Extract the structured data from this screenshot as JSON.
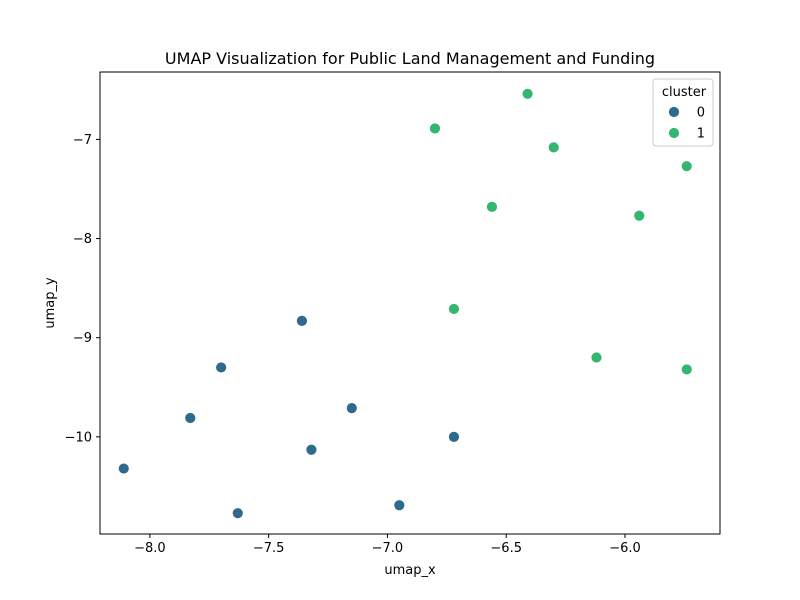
{
  "chart_data": {
    "type": "scatter",
    "title": "UMAP Visualization for Public Land Management and Funding",
    "xlabel": "umap_x",
    "ylabel": "umap_y",
    "xlim": [
      -8.21,
      -5.6
    ],
    "ylim": [
      -10.98,
      -6.32
    ],
    "xticks": [
      -8.0,
      -7.5,
      -7.0,
      -6.5,
      -6.0
    ],
    "xtick_labels": [
      "−8.0",
      "−7.5",
      "−7.0",
      "−6.5",
      "−6.0"
    ],
    "yticks": [
      -7,
      -8,
      -9,
      -10
    ],
    "ytick_labels": [
      "−7",
      "−8",
      "−9",
      "−10"
    ],
    "grid": false,
    "legend": {
      "title": "cluster",
      "placement": "top-right",
      "entries": [
        {
          "label": "0",
          "color": "#2e6a8e"
        },
        {
          "label": "1",
          "color": "#33b66f"
        }
      ]
    },
    "series": [
      {
        "name": "0",
        "color": "#2e6a8e",
        "points": [
          {
            "x": -8.11,
            "y": -10.32
          },
          {
            "x": -7.83,
            "y": -9.81
          },
          {
            "x": -7.7,
            "y": -9.3
          },
          {
            "x": -7.63,
            "y": -10.77
          },
          {
            "x": -7.36,
            "y": -8.83
          },
          {
            "x": -7.32,
            "y": -10.13
          },
          {
            "x": -7.15,
            "y": -9.71
          },
          {
            "x": -6.95,
            "y": -10.69
          },
          {
            "x": -6.72,
            "y": -10.0
          }
        ]
      },
      {
        "name": "1",
        "color": "#33b66f",
        "points": [
          {
            "x": -6.8,
            "y": -6.89
          },
          {
            "x": -6.72,
            "y": -8.71
          },
          {
            "x": -6.56,
            "y": -7.68
          },
          {
            "x": -6.41,
            "y": -6.54
          },
          {
            "x": -6.3,
            "y": -7.08
          },
          {
            "x": -6.12,
            "y": -9.2
          },
          {
            "x": -5.94,
            "y": -7.77
          },
          {
            "x": -5.74,
            "y": -7.27
          },
          {
            "x": -5.74,
            "y": -9.32
          }
        ]
      }
    ]
  }
}
